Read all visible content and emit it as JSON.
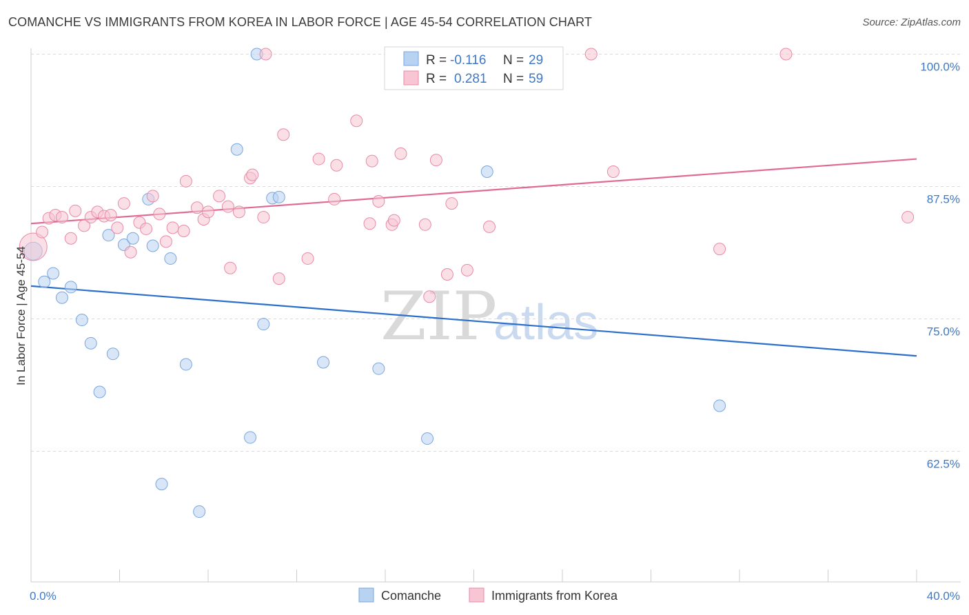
{
  "title": "COMANCHE VS IMMIGRANTS FROM KOREA IN LABOR FORCE | AGE 45-54 CORRELATION CHART",
  "source": "Source: ZipAtlas.com",
  "watermark": {
    "zip": "ZIP",
    "atlas": "atlas"
  },
  "colors": {
    "blue_fill": "#b8d2f2",
    "blue_stroke": "#7aa6dc",
    "blue_line": "#2a6fcc",
    "pink_fill": "#f7c5d3",
    "pink_stroke": "#e88aa6",
    "pink_line": "#e06a93",
    "grid": "#d9d9d9",
    "tick_text": "#3d78c8"
  },
  "legend": {
    "rows": [
      {
        "r_label": "R =",
        "r_value": "-0.116",
        "n_label": "N =",
        "n_value": "29"
      },
      {
        "r_label": "R =",
        "r_value": "0.281",
        "n_label": "N =",
        "n_value": "59"
      }
    ]
  },
  "chart_data": {
    "type": "scatter",
    "title": "COMANCHE VS IMMIGRANTS FROM KOREA IN LABOR FORCE | AGE 45-54 CORRELATION CHART",
    "xlabel": "",
    "ylabel": "In Labor Force | Age 45-54",
    "xlim": [
      0,
      40
    ],
    "ylim": [
      51,
      102
    ],
    "x_tick_labels": [
      "0.0%",
      "40.0%"
    ],
    "y_ticks": [
      {
        "value": 62.5,
        "label": "62.5%"
      },
      {
        "value": 75.0,
        "label": "75.0%"
      },
      {
        "value": 87.5,
        "label": "87.5%"
      },
      {
        "value": 100.0,
        "label": "100.0%"
      }
    ],
    "series": [
      {
        "name": "Comanche",
        "color": "blue",
        "r": -0.116,
        "n": 29,
        "trend": {
          "x": [
            0,
            40
          ],
          "y": [
            78.1,
            71.5
          ]
        },
        "points": [
          [
            0.1,
            81.4
          ],
          [
            0.6,
            78.5
          ],
          [
            1.0,
            79.3
          ],
          [
            1.4,
            77.0
          ],
          [
            1.8,
            78.0
          ],
          [
            2.3,
            74.9
          ],
          [
            2.7,
            72.7
          ],
          [
            3.1,
            68.1
          ],
          [
            3.5,
            82.9
          ],
          [
            3.7,
            71.7
          ],
          [
            4.2,
            82.0
          ],
          [
            4.6,
            82.6
          ],
          [
            5.3,
            86.3
          ],
          [
            5.5,
            81.9
          ],
          [
            5.9,
            59.4
          ],
          [
            6.3,
            80.7
          ],
          [
            7.0,
            70.7
          ],
          [
            7.6,
            56.8
          ],
          [
            9.3,
            91.0
          ],
          [
            9.9,
            63.8
          ],
          [
            10.2,
            100.0
          ],
          [
            10.5,
            74.5
          ],
          [
            10.9,
            86.4
          ],
          [
            11.2,
            86.5
          ],
          [
            13.2,
            70.9
          ],
          [
            15.7,
            70.3
          ],
          [
            17.9,
            63.7
          ],
          [
            20.6,
            88.9
          ],
          [
            31.1,
            66.8
          ]
        ]
      },
      {
        "name": "Immigrants from Korea",
        "color": "pink",
        "r": 0.281,
        "n": 59,
        "trend": {
          "x": [
            0,
            40
          ],
          "y": [
            84.0,
            90.1
          ]
        },
        "points": [
          [
            0.1,
            81.8
          ],
          [
            0.5,
            83.2
          ],
          [
            0.8,
            84.5
          ],
          [
            1.1,
            84.8
          ],
          [
            1.4,
            84.6
          ],
          [
            1.8,
            82.6
          ],
          [
            2.0,
            85.2
          ],
          [
            2.4,
            83.8
          ],
          [
            2.7,
            84.6
          ],
          [
            3.0,
            85.1
          ],
          [
            3.3,
            84.7
          ],
          [
            3.6,
            84.8
          ],
          [
            3.9,
            83.6
          ],
          [
            4.2,
            85.9
          ],
          [
            4.5,
            81.3
          ],
          [
            4.9,
            84.1
          ],
          [
            5.2,
            83.5
          ],
          [
            5.5,
            86.6
          ],
          [
            5.8,
            84.9
          ],
          [
            6.1,
            82.3
          ],
          [
            6.4,
            83.6
          ],
          [
            6.9,
            83.3
          ],
          [
            7.0,
            88.0
          ],
          [
            7.5,
            85.5
          ],
          [
            7.8,
            84.4
          ],
          [
            8.0,
            85.1
          ],
          [
            8.5,
            86.6
          ],
          [
            8.9,
            85.6
          ],
          [
            9.0,
            79.8
          ],
          [
            9.4,
            85.1
          ],
          [
            9.9,
            88.3
          ],
          [
            10.0,
            88.6
          ],
          [
            10.5,
            84.6
          ],
          [
            10.6,
            100.0
          ],
          [
            11.2,
            78.8
          ],
          [
            11.4,
            92.4
          ],
          [
            12.5,
            80.7
          ],
          [
            13.0,
            90.1
          ],
          [
            13.7,
            86.3
          ],
          [
            13.8,
            89.5
          ],
          [
            14.7,
            93.7
          ],
          [
            15.3,
            84.0
          ],
          [
            15.4,
            89.9
          ],
          [
            15.7,
            86.1
          ],
          [
            16.3,
            83.9
          ],
          [
            16.4,
            84.3
          ],
          [
            16.7,
            90.6
          ],
          [
            17.8,
            83.9
          ],
          [
            18.0,
            77.1
          ],
          [
            18.3,
            90.0
          ],
          [
            18.8,
            79.2
          ],
          [
            19.0,
            85.9
          ],
          [
            19.7,
            79.6
          ],
          [
            20.7,
            83.7
          ],
          [
            25.3,
            100.0
          ],
          [
            26.3,
            88.9
          ],
          [
            31.1,
            81.6
          ],
          [
            34.1,
            100.0
          ],
          [
            39.6,
            84.6
          ]
        ]
      }
    ]
  },
  "bottom_legend": [
    {
      "label": "Comanche",
      "color": "blue"
    },
    {
      "label": "Immigrants from Korea",
      "color": "pink"
    }
  ]
}
